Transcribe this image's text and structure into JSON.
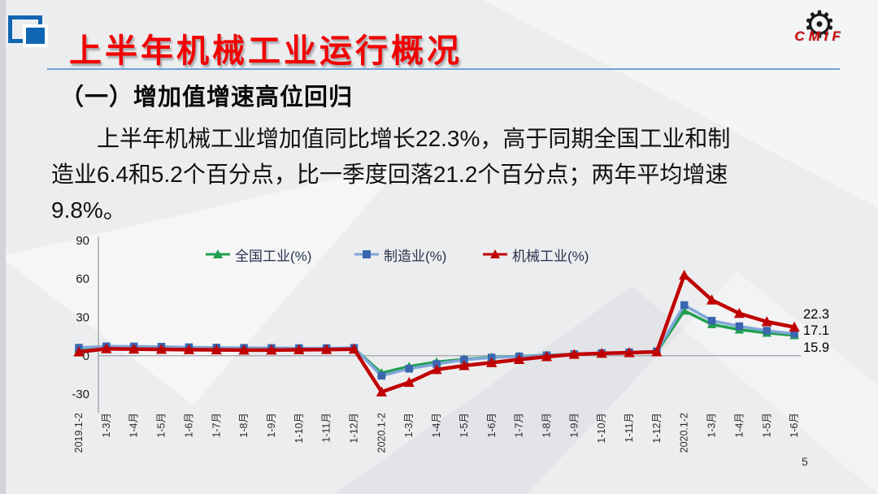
{
  "slide": {
    "title": "上半年机械工业运行概况",
    "subtitle": "（一）增加值增速高位回归",
    "body_lines": [
      "上半年机械工业增加值同比增长22.3%，高于同期全国工业和制",
      "造业6.4和5.2个百分点，比一季度回落21.2个百分点；两年平均增速",
      "9.8%。"
    ],
    "logo": {
      "text": "CMIF",
      "gear_icon": "gear-icon"
    },
    "page_number": "5",
    "accent_red": "#f20000",
    "underline_blue": "#6fa3d8"
  },
  "chart_data": {
    "type": "line",
    "categories": [
      "2019.1-2",
      "1-3月",
      "1-4月",
      "1-5月",
      "1-6月",
      "1-7月",
      "1-8月",
      "1-9月",
      "1-10月",
      "1-11月",
      "1-12月",
      "2020.1-2",
      "1-3月",
      "1-4月",
      "1-5月",
      "1-6月",
      "1-7月",
      "1-8月",
      "1-9月",
      "1-10月",
      "1-11月",
      "1-12月",
      "2020.1-2",
      "1-3月",
      "1-4月",
      "1-5月",
      "1-6月"
    ],
    "series": [
      {
        "name": "全国工业(%)",
        "marker": "triangle",
        "color": "#1fa04f",
        "line_color": "#1fa04f",
        "values": [
          5.3,
          6.5,
          6.2,
          6.0,
          6.0,
          5.8,
          5.6,
          5.6,
          5.6,
          5.6,
          5.7,
          -13.5,
          -8.4,
          -4.9,
          -2.8,
          -1.3,
          -0.4,
          0.4,
          1.2,
          1.8,
          2.3,
          2.8,
          35.1,
          24.5,
          20.3,
          17.8,
          15.9
        ]
      },
      {
        "name": "制造业(%)",
        "marker": "square",
        "color": "#3a66b0",
        "line_color": "#7ea6d9",
        "values": [
          6.2,
          7.3,
          7.2,
          7.0,
          6.6,
          6.3,
          6.1,
          6.0,
          5.9,
          5.9,
          6.1,
          -15.7,
          -10.2,
          -6.5,
          -3.2,
          -1.5,
          -0.6,
          0.3,
          1.2,
          2.0,
          2.6,
          3.4,
          39.5,
          27.3,
          23.0,
          19.5,
          17.1
        ]
      },
      {
        "name": "机械工业(%)",
        "marker": "triangle",
        "color": "#c00000",
        "line_color": "#c00000",
        "values": [
          2.9,
          5.4,
          5.1,
          4.9,
          4.7,
          4.5,
          4.4,
          4.4,
          4.6,
          4.8,
          5.1,
          -28.3,
          -20.9,
          -10.9,
          -7.8,
          -5.5,
          -3.0,
          -0.8,
          1.0,
          1.8,
          2.3,
          3.0,
          62.9,
          43.5,
          33.0,
          26.5,
          22.3
        ]
      }
    ],
    "ylim": [
      -30,
      90
    ],
    "yticks": [
      90,
      60,
      30,
      0,
      -30
    ],
    "grid": "zero-line-only",
    "legend_position": "top",
    "end_labels": [
      "22.3",
      "17.1",
      "15.9"
    ],
    "xlabel": "",
    "ylabel": ""
  }
}
